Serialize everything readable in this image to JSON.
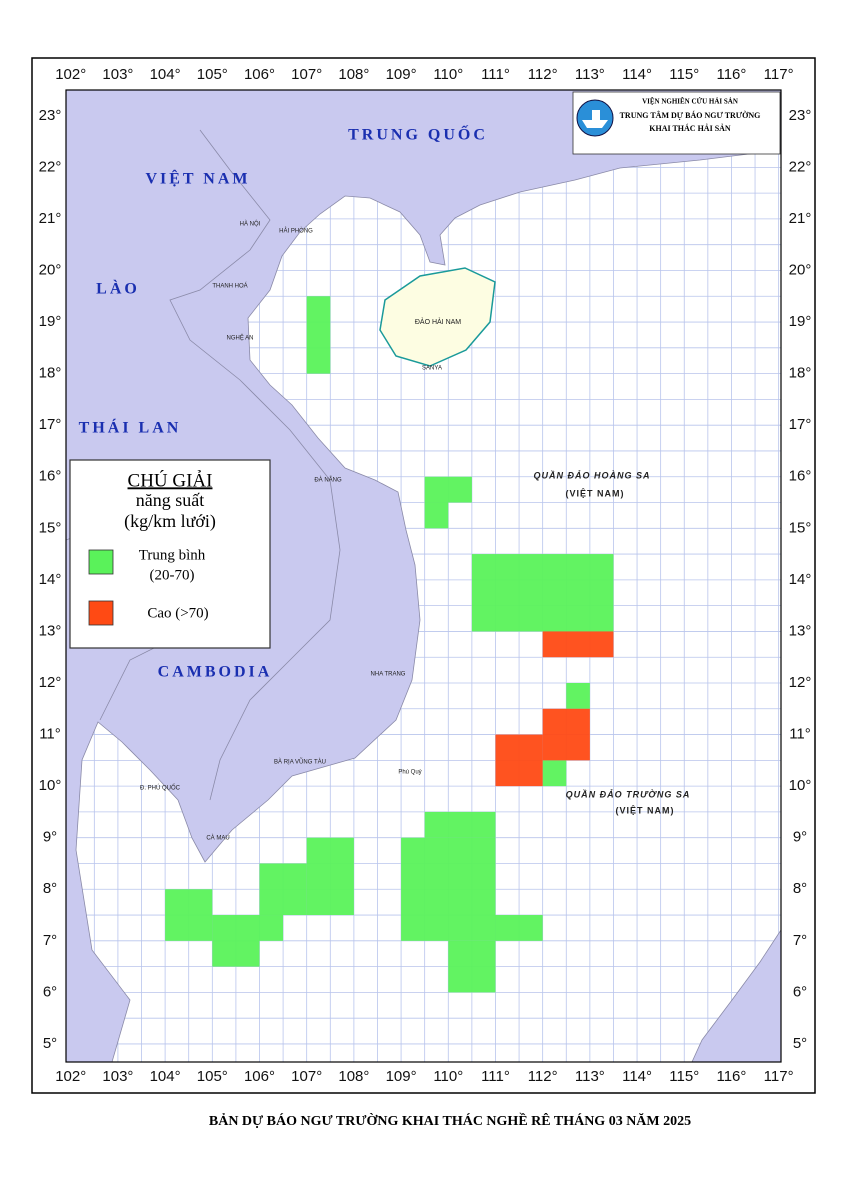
{
  "header": {
    "institute": "VIỆN NGHIÊN CỨU HẢI SẢN",
    "center_line1": "TRUNG TÂM DỰ BÁO NGƯ TRƯỜNG",
    "center_line2": "KHAI THÁC HẢI SẢN"
  },
  "map": {
    "xlim": [
      101.9,
      117.05
    ],
    "ylim": [
      4.65,
      23.5
    ],
    "xticks": [
      {
        "value": 102,
        "label": "102°"
      },
      {
        "value": 103,
        "label": "103°"
      },
      {
        "value": 104,
        "label": "104°"
      },
      {
        "value": 105,
        "label": "105°"
      },
      {
        "value": 106,
        "label": "106°"
      },
      {
        "value": 107,
        "label": "107°"
      },
      {
        "value": 108,
        "label": "108°"
      },
      {
        "value": 109,
        "label": "109°"
      },
      {
        "value": 110,
        "label": "110°"
      },
      {
        "value": 111,
        "label": "111°"
      },
      {
        "value": 112,
        "label": "112°"
      },
      {
        "value": 113,
        "label": "113°"
      },
      {
        "value": 114,
        "label": "114°"
      },
      {
        "value": 115,
        "label": "115°"
      },
      {
        "value": 116,
        "label": "116°"
      },
      {
        "value": 117,
        "label": "117°"
      }
    ],
    "yticks": [
      {
        "value": 5,
        "label": "5°"
      },
      {
        "value": 6,
        "label": "6°"
      },
      {
        "value": 7,
        "label": "7°"
      },
      {
        "value": 8,
        "label": "8°"
      },
      {
        "value": 9,
        "label": "9°"
      },
      {
        "value": 10,
        "label": "10°"
      },
      {
        "value": 11,
        "label": "11°"
      },
      {
        "value": 12,
        "label": "12°"
      },
      {
        "value": 13,
        "label": "13°"
      },
      {
        "value": 14,
        "label": "14°"
      },
      {
        "value": 15,
        "label": "15°"
      },
      {
        "value": 16,
        "label": "16°"
      },
      {
        "value": 17,
        "label": "17°"
      },
      {
        "value": 18,
        "label": "18°"
      },
      {
        "value": 19,
        "label": "19°"
      },
      {
        "value": 20,
        "label": "20°"
      },
      {
        "value": 21,
        "label": "21°"
      },
      {
        "value": 22,
        "label": "22°"
      },
      {
        "value": 23,
        "label": "23°"
      }
    ],
    "countries": [
      "TRUNG QUỐC",
      "VIỆT NAM",
      "LÀO",
      "THÁI LAN",
      "CAMBODIA"
    ],
    "islands": [
      "ĐẢO HẢI NAM",
      "QUẦN ĐẢO HOÀNG SA",
      "(VIỆT NAM)",
      "QUẦN ĐẢO TRƯỜNG SA",
      "(VIỆT NAM)"
    ],
    "places": [
      "HÀ NỘI",
      "HẢI PHÒNG",
      "THANH HOÁ",
      "NGHỆ AN",
      "ĐÀ NẴNG",
      "NHA TRANG",
      "BÀ RỊA VŨNG TÀU",
      "CÀ MAU",
      "Đ. PHÚ QUỐC",
      "SANYA",
      "Phú Quý"
    ]
  },
  "legend": {
    "title": "CHÚ GIẢI",
    "subtitle1": "năng suất",
    "subtitle2": "(kg/km lưới)",
    "items": [
      {
        "label": "Trung bình",
        "range": "(20-70)",
        "color": "#5af25a",
        "cells": [
          [
            107,
            18,
            107.5,
            19.5
          ],
          [
            109.5,
            15.5,
            110.5,
            16
          ],
          [
            109.5,
            15,
            110,
            15.5
          ],
          [
            110.5,
            13,
            113.5,
            14.5
          ],
          [
            112.5,
            11.5,
            113,
            12
          ],
          [
            112,
            10,
            112.5,
            10.5
          ],
          [
            104,
            7,
            105,
            8
          ],
          [
            105,
            6.5,
            106,
            7.5
          ],
          [
            106,
            7.5,
            107,
            8.5
          ],
          [
            106,
            7,
            106.5,
            7.5
          ],
          [
            107,
            7.5,
            108,
            9
          ],
          [
            109,
            7,
            111,
            9
          ],
          [
            109.5,
            9,
            111,
            9.5
          ],
          [
            110,
            6,
            111,
            7
          ],
          [
            111,
            7,
            112,
            7.5
          ]
        ]
      },
      {
        "label": "Cao (>70)",
        "color": "#ff4a14",
        "cells": [
          [
            112,
            12.5,
            113.5,
            13
          ],
          [
            112,
            10.5,
            113,
            11.5
          ],
          [
            111,
            10,
            112,
            11
          ]
        ]
      }
    ]
  },
  "caption": "BẢN DỰ BÁO NGƯ TRƯỜNG KHAI THÁC NGHỀ RÊ THÁNG 03 NĂM 2025"
}
